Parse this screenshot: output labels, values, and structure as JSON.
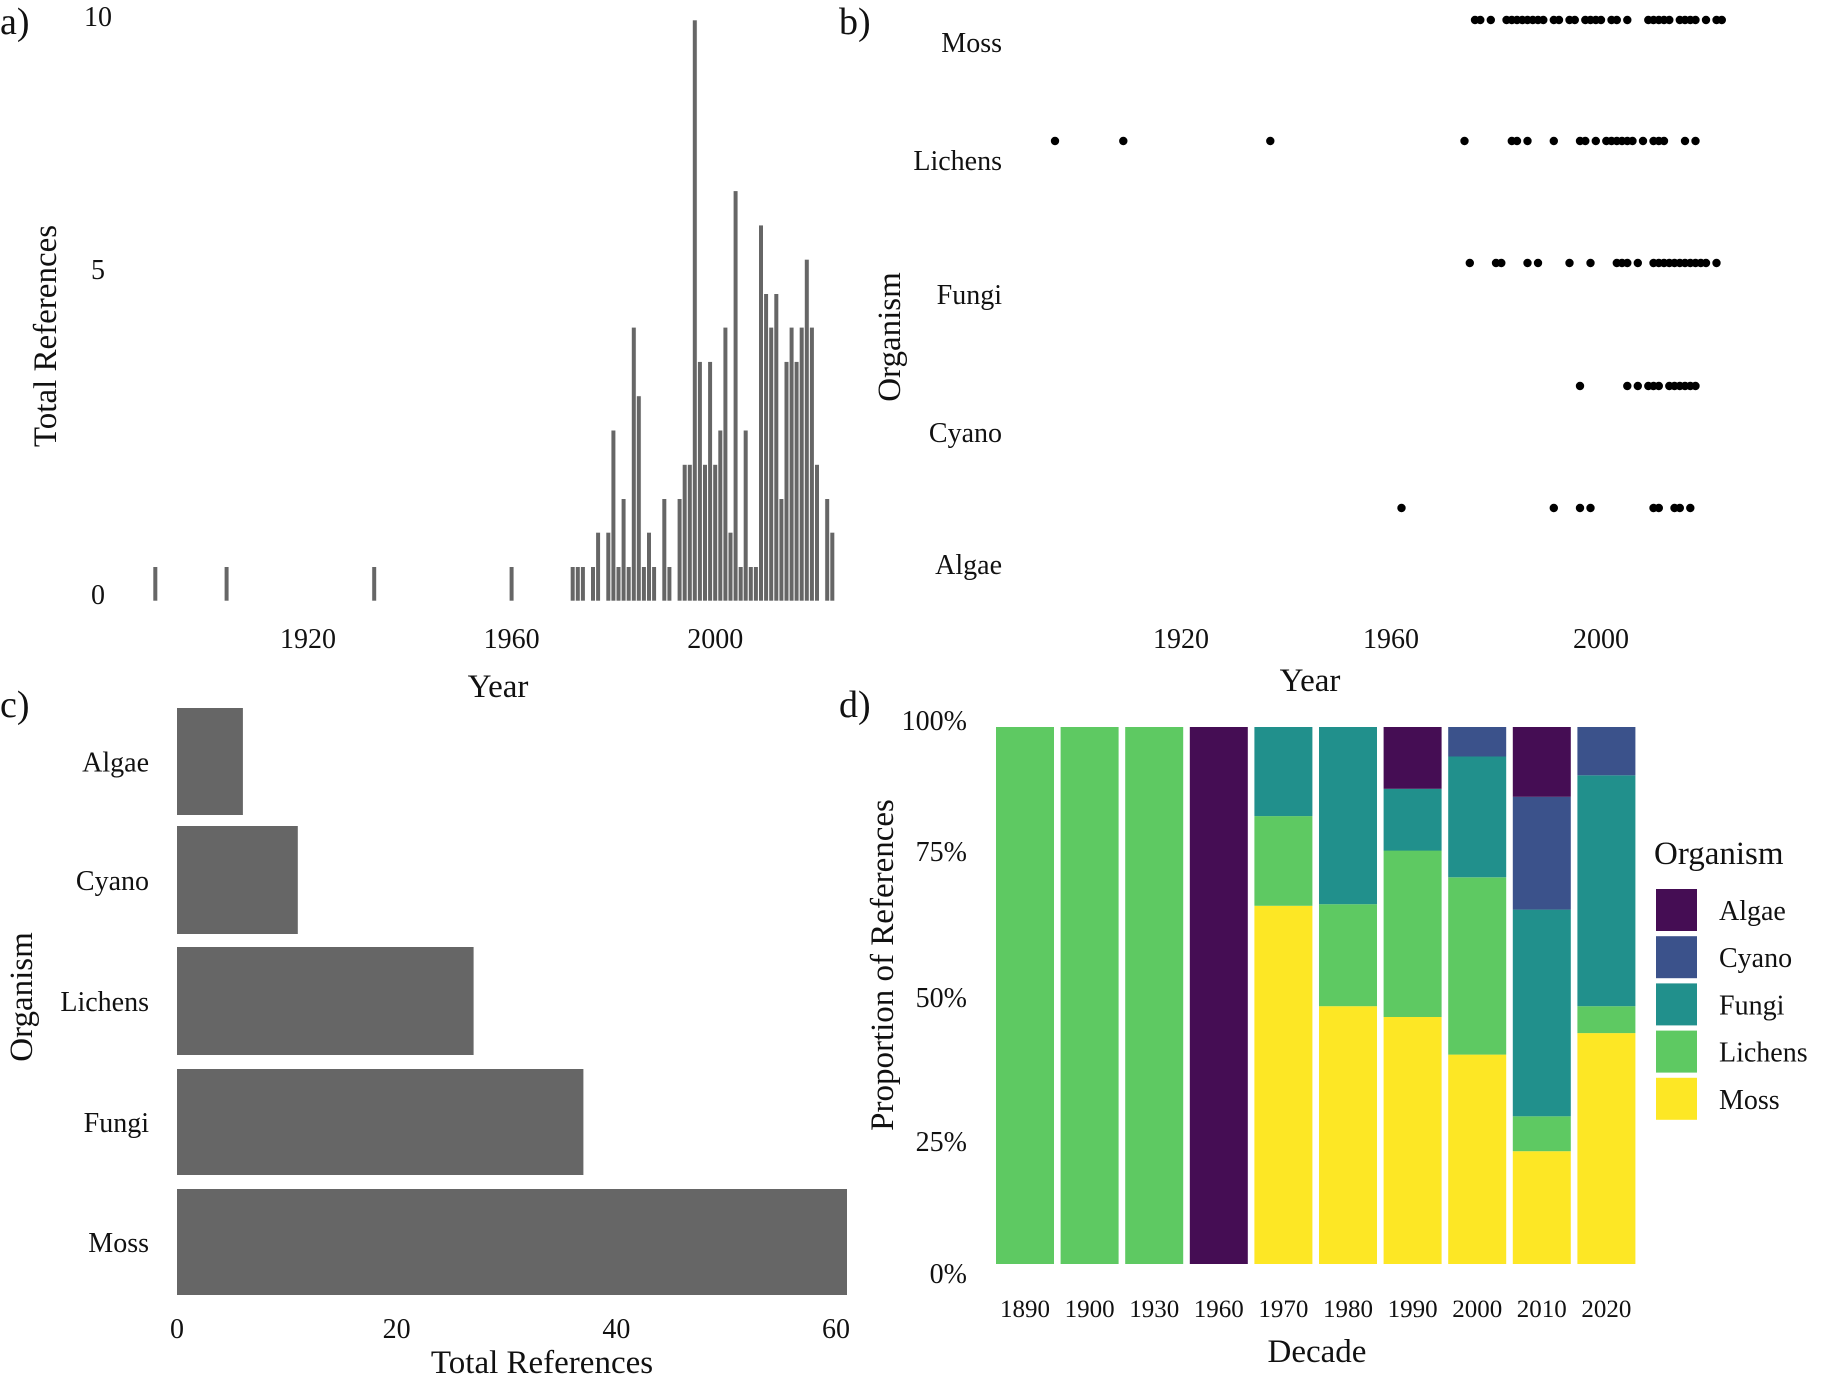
{
  "figure": {
    "panel_labels": [
      "a)",
      "b)",
      "c)",
      "d)"
    ]
  },
  "colors": {
    "bar_gray": "#666666",
    "dot_black": "#000000",
    "Algae": "#450d54",
    "Cyano": "#3b528b",
    "Fungi": "#21908c",
    "Lichens": "#5ec962",
    "Moss": "#fde725"
  },
  "chart_data": [
    {
      "id": "a",
      "type": "bar",
      "title": "",
      "xlabel": "Year",
      "ylabel": "Total References",
      "xlim": [
        1885,
        2026
      ],
      "ylim": [
        0,
        10
      ],
      "xticks": [
        1920,
        1960,
        2000
      ],
      "yticks": [
        0,
        5,
        10
      ],
      "grid": false,
      "x": [
        1890,
        1904,
        1933,
        1960,
        1972,
        1973,
        1974,
        1976,
        1977,
        1979,
        1980,
        1981,
        1982,
        1983,
        1984,
        1985,
        1986,
        1987,
        1988,
        1990,
        1991,
        1993,
        1994,
        1995,
        1996,
        1997,
        1998,
        1999,
        2000,
        2001,
        2002,
        2003,
        2004,
        2005,
        2006,
        2007,
        2008,
        2009,
        2010,
        2011,
        2012,
        2013,
        2014,
        2015,
        2016,
        2017,
        2018,
        2019,
        2020,
        2022,
        2023
      ],
      "values": [
        0.59,
        0.59,
        0.59,
        0.59,
        0.59,
        0.59,
        0.59,
        0.59,
        1.18,
        1.18,
        2.94,
        0.59,
        1.76,
        0.59,
        4.71,
        3.53,
        0.59,
        1.18,
        0.59,
        1.76,
        0.59,
        1.76,
        2.35,
        2.35,
        10.0,
        4.12,
        2.35,
        4.12,
        2.35,
        2.94,
        4.71,
        1.18,
        7.06,
        0.59,
        2.94,
        0.59,
        0.59,
        6.47,
        5.29,
        4.71,
        5.29,
        1.76,
        4.12,
        4.71,
        4.12,
        4.71,
        5.88,
        4.71,
        2.35,
        1.76,
        1.18
      ]
    },
    {
      "id": "b",
      "type": "scatter",
      "title": "",
      "xlabel": "Year",
      "ylabel": "Organism",
      "xlim": [
        1885,
        2026
      ],
      "xticks": [
        1920,
        1960,
        2000
      ],
      "categories": [
        "Moss",
        "Lichens",
        "Fungi",
        "Cyano",
        "Algae"
      ],
      "grid": false,
      "series": [
        {
          "name": "Moss",
          "years": [
            1976,
            1977,
            1979,
            1982,
            1983,
            1984,
            1985,
            1986,
            1987,
            1988,
            1989,
            1991,
            1992,
            1994,
            1995,
            1997,
            1998,
            1999,
            2000,
            2002,
            2003,
            2005,
            2009,
            2010,
            2011,
            2012,
            2013,
            2015,
            2016,
            2017,
            2018,
            2020,
            2022,
            2023
          ]
        },
        {
          "name": "Lichens",
          "years": [
            1896,
            1909,
            1937,
            1974,
            1983,
            1984,
            1986,
            1991,
            1996,
            1997,
            1999,
            2001,
            2002,
            2003,
            2004,
            2005,
            2006,
            2008,
            2010,
            2011,
            2012,
            2016,
            2018
          ]
        },
        {
          "name": "Fungi",
          "years": [
            1975,
            1980,
            1981,
            1986,
            1988,
            1994,
            1998,
            2003,
            2004,
            2005,
            2007,
            2010,
            2011,
            2012,
            2013,
            2014,
            2015,
            2016,
            2017,
            2018,
            2019,
            2020,
            2022
          ]
        },
        {
          "name": "Cyano",
          "years": [
            1996,
            2005,
            2007,
            2009,
            2010,
            2011,
            2013,
            2014,
            2015,
            2016,
            2017,
            2018
          ]
        },
        {
          "name": "Algae",
          "years": [
            1962,
            1991,
            1996,
            1998,
            2010,
            2011,
            2014,
            2015,
            2017
          ]
        }
      ]
    },
    {
      "id": "c",
      "type": "bar",
      "orientation": "horizontal",
      "title": "",
      "xlabel": "Total References",
      "ylabel": "Organism",
      "xlim": [
        0,
        61
      ],
      "xticks": [
        0,
        20,
        40,
        60
      ],
      "categories": [
        "Algae",
        "Cyano",
        "Lichens",
        "Fungi",
        "Moss"
      ],
      "values": [
        6,
        11,
        27,
        37,
        61
      ],
      "grid": false
    },
    {
      "id": "d",
      "type": "bar",
      "stacked": true,
      "normalized": true,
      "title": "",
      "xlabel": "Decade",
      "ylabel": "Proportion of References",
      "ylim": [
        0,
        1
      ],
      "yticks": [
        "0%",
        "25%",
        "50%",
        "75%",
        "100%"
      ],
      "categories": [
        "1890",
        "1900",
        "1930",
        "1960",
        "1970",
        "1980",
        "1990",
        "2000",
        "2010",
        "2020"
      ],
      "legend": {
        "title": "Organism",
        "position": "right",
        "entries": [
          "Algae",
          "Cyano",
          "Fungi",
          "Lichens",
          "Moss"
        ]
      },
      "stack_order_bottom_to_top": [
        "Moss",
        "Lichens",
        "Fungi",
        "Cyano",
        "Algae"
      ],
      "series": [
        {
          "name": "Moss",
          "values": [
            0,
            0,
            0,
            0,
            0.667,
            0.48,
            0.46,
            0.39,
            0.21,
            0.43
          ]
        },
        {
          "name": "Lichens",
          "values": [
            1,
            1,
            1,
            0,
            0.167,
            0.19,
            0.31,
            0.33,
            0.065,
            0.05
          ]
        },
        {
          "name": "Fungi",
          "values": [
            0,
            0,
            0,
            0,
            0.166,
            0.33,
            0.115,
            0.225,
            0.385,
            0.43
          ]
        },
        {
          "name": "Cyano",
          "values": [
            0,
            0,
            0,
            0,
            0,
            0,
            0,
            0.055,
            0.21,
            0.09
          ]
        },
        {
          "name": "Algae",
          "values": [
            0,
            0,
            0,
            1,
            0,
            0,
            0.115,
            0,
            0.13,
            0
          ]
        }
      ],
      "grid": false
    }
  ]
}
